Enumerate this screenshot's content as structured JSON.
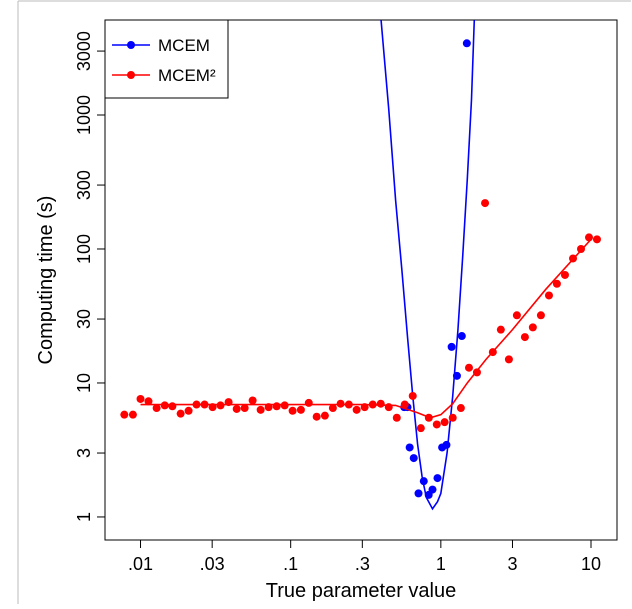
{
  "chart_data": {
    "type": "scatter",
    "xlabel": "True parameter value",
    "ylabel": "Computing time (s)",
    "xscale": "log",
    "yscale": "log",
    "xlim": [
      0.0058,
      14.9
    ],
    "ylim": [
      0.673,
      5117
    ],
    "xticks": [
      {
        "value": 0.01,
        "label": ".01"
      },
      {
        "value": 0.03,
        "label": ".03"
      },
      {
        "value": 0.1,
        "label": ".1"
      },
      {
        "value": 0.3,
        "label": ".3"
      },
      1,
      3,
      10
    ],
    "yticks": [
      1,
      3,
      10,
      30,
      100,
      300,
      1000,
      3000
    ],
    "legend": "top-left",
    "series": [
      {
        "name": "MCEM",
        "color": "#0000ff",
        "x": [
          0.57,
          0.6,
          0.62,
          0.66,
          0.71,
          0.77,
          0.83,
          0.88,
          0.95,
          1.02,
          1.09,
          1.18,
          1.28,
          1.38,
          1.49
        ],
        "values": [
          6.6,
          6.6,
          3.3,
          2.75,
          1.5,
          1.85,
          1.46,
          1.6,
          1.95,
          3.3,
          3.45,
          18.6,
          11.3,
          22.4,
          3430
        ],
        "curve": {
          "x": [
            0.4,
            0.45,
            0.5,
            0.55,
            0.6,
            0.65,
            0.7,
            0.75,
            0.8,
            0.88,
            0.95,
            1.0,
            1.1,
            1.2,
            1.3,
            1.4,
            1.5,
            1.6,
            1.67
          ],
          "values": [
            5100,
            1100,
            230,
            70,
            22,
            8,
            3.5,
            2,
            1.4,
            1.15,
            1.3,
            1.5,
            3,
            8,
            25,
            90,
            330,
            1300,
            5100
          ]
        }
      },
      {
        "name": "MCEM²",
        "color": "#ff0000",
        "x": [
          0.0078,
          0.0089,
          0.01,
          0.0113,
          0.0128,
          0.0145,
          0.0163,
          0.0185,
          0.0209,
          0.0236,
          0.0267,
          0.0302,
          0.0341,
          0.0386,
          0.0437,
          0.0494,
          0.0558,
          0.0631,
          0.0713,
          0.0807,
          0.0912,
          0.103,
          0.117,
          0.132,
          0.149,
          0.169,
          0.191,
          0.215,
          0.244,
          0.275,
          0.311,
          0.352,
          0.398,
          0.45,
          0.509,
          0.575,
          0.65,
          0.736,
          0.832,
          0.94,
          1.06,
          1.2,
          1.36,
          1.54,
          1.74,
          1.97,
          2.22,
          2.51,
          2.84,
          3.21,
          3.63,
          4.1,
          4.64,
          5.25,
          5.93,
          6.71,
          7.59,
          8.58,
          9.7,
          10.96
        ],
        "values": [
          5.8,
          5.8,
          7.6,
          7.3,
          6.5,
          6.8,
          6.7,
          5.9,
          6.2,
          6.9,
          6.9,
          6.6,
          6.8,
          7.2,
          6.4,
          6.5,
          7.4,
          6.3,
          6.6,
          6.7,
          6.8,
          6.2,
          6.3,
          7.1,
          5.6,
          5.7,
          6.5,
          7.0,
          6.9,
          6.3,
          6.6,
          6.9,
          7.0,
          6.6,
          5.5,
          6.9,
          8.0,
          4.6,
          5.5,
          4.9,
          5.1,
          5.5,
          6.5,
          13,
          12,
          220,
          17,
          25,
          15,
          32,
          22,
          26,
          32,
          45,
          55,
          64,
          85,
          100,
          122,
          118
        ],
        "curve": {
          "x": [
            0.01,
            0.03,
            0.1,
            0.3,
            0.5,
            0.7,
            0.85,
            1.0,
            1.2,
            1.5,
            2,
            3,
            5,
            10
          ],
          "values": [
            6.9,
            6.9,
            6.9,
            6.9,
            6.8,
            6.0,
            5.5,
            5.8,
            7,
            10,
            15,
            25,
            50,
            118
          ]
        }
      }
    ]
  }
}
